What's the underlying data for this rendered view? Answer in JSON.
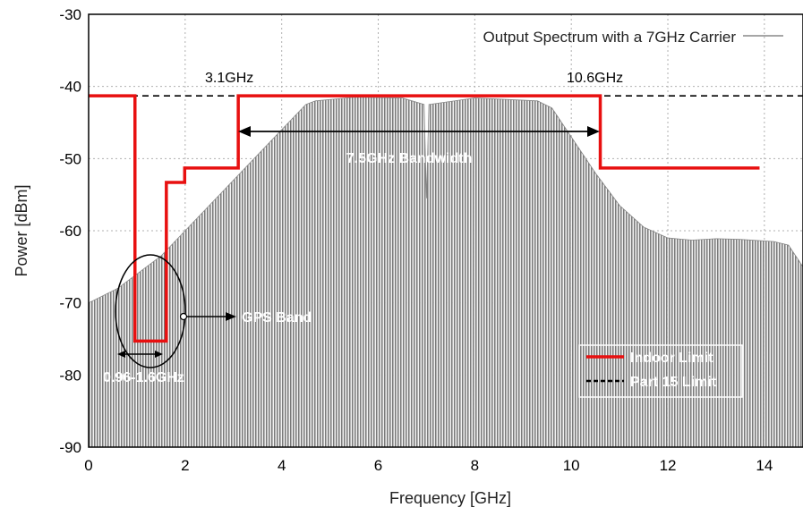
{
  "chart_data": {
    "type": "line",
    "xlabel": "Frequency [GHz]",
    "ylabel": "Power [dBm]",
    "xlim": [
      0,
      14.8
    ],
    "ylim": [
      -90,
      -30
    ],
    "x_ticks": [
      0,
      2,
      4,
      6,
      8,
      10,
      12,
      14
    ],
    "y_ticks": [
      -90,
      -80,
      -70,
      -60,
      -50,
      -40,
      -30
    ],
    "grid": true,
    "legend_position": "top-right",
    "colors": {
      "spectrum": "#8a8a8a",
      "indoor_limit": "#e81010",
      "part15": "#000000"
    },
    "series": [
      {
        "name": "Output Spectrum with a 7GHz Carrier",
        "x": [
          0,
          0.3,
          0.6,
          1.0,
          1.5,
          2.0,
          2.5,
          3.0,
          3.5,
          4.0,
          4.5,
          4.7,
          5.5,
          6.5,
          6.95,
          7.0,
          7.05,
          8.0,
          9.3,
          9.6,
          10.0,
          10.5,
          11.0,
          11.5,
          12.0,
          12.5,
          13.0,
          13.5,
          14.2,
          14.5,
          14.8
        ],
        "values": [
          -70,
          -69,
          -68,
          -66,
          -63.5,
          -60,
          -56.5,
          -53,
          -49.5,
          -46,
          -42.5,
          -42,
          -41.5,
          -41.6,
          -42.5,
          -55.5,
          -42.5,
          -41.6,
          -42,
          -43,
          -47,
          -52,
          -56.5,
          -59.5,
          -61,
          -61.3,
          -61.1,
          -61.2,
          -61.5,
          -62,
          -65
        ]
      },
      {
        "name": "Indoor Limit",
        "x": [
          0,
          0.96,
          0.96,
          1.61,
          1.61,
          1.99,
          1.99,
          3.1,
          3.1,
          10.6,
          10.6,
          13.9
        ],
        "values": [
          -41.3,
          -41.3,
          -75.3,
          -75.3,
          -53.3,
          -53.3,
          -51.3,
          -51.3,
          -41.3,
          -41.3,
          -51.3,
          -51.3
        ]
      },
      {
        "name": "Part 15 Limit",
        "x": [
          0,
          14.8
        ],
        "values": [
          -41.3,
          -41.3
        ]
      }
    ],
    "annotations": {
      "freq_low": "3.1GHz",
      "freq_high": "10.6GHz",
      "bandwidth": "7.5GHz Bandwidth",
      "gps_band": "GPS Band",
      "gps_range": "0.96-1.6GHz"
    },
    "legend": {
      "indoor": "Indoor Limit",
      "part15": "Part 15 Limit"
    }
  }
}
